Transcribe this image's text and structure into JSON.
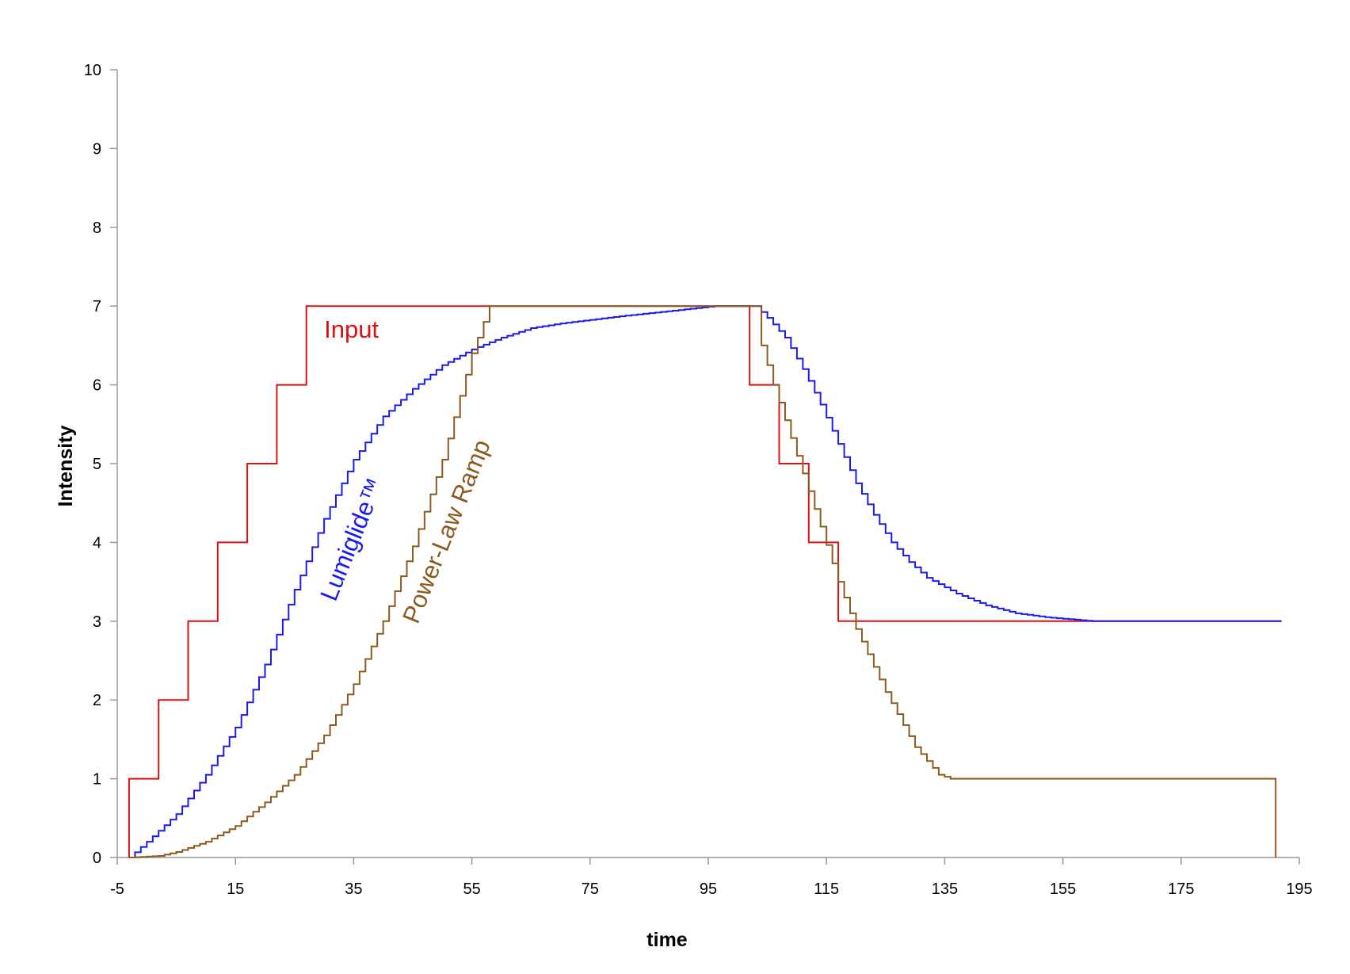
{
  "chart_data": {
    "type": "line",
    "title": "",
    "xlabel": "time",
    "ylabel": "Intensity",
    "xlim": [
      -5,
      195
    ],
    "ylim": [
      0,
      10
    ],
    "x_ticks": [
      -5,
      15,
      35,
      55,
      75,
      95,
      115,
      135,
      155,
      175,
      195
    ],
    "y_ticks": [
      0,
      1,
      2,
      3,
      4,
      5,
      6,
      7,
      8,
      9,
      10
    ],
    "grid": false,
    "legend": "inline labels",
    "step_size": 1,
    "series": [
      {
        "name": "Input",
        "color": "#dd1111",
        "style": "step",
        "points": [
          [
            -3,
            0
          ],
          [
            -3,
            1
          ],
          [
            2,
            1
          ],
          [
            2,
            2
          ],
          [
            7,
            2
          ],
          [
            7,
            3
          ],
          [
            12,
            3
          ],
          [
            12,
            4
          ],
          [
            17,
            4
          ],
          [
            17,
            5
          ],
          [
            22,
            5
          ],
          [
            22,
            6
          ],
          [
            27,
            6
          ],
          [
            27,
            7
          ],
          [
            102,
            7
          ],
          [
            102,
            6
          ],
          [
            107,
            6
          ],
          [
            107,
            5
          ],
          [
            112,
            5
          ],
          [
            112,
            4
          ],
          [
            117,
            4
          ],
          [
            117,
            3
          ],
          [
            192,
            3
          ]
        ]
      },
      {
        "name": "Lumiglide™",
        "color": "#1a1aee",
        "style": "fine-step",
        "points": [
          [
            -3,
            0
          ],
          [
            0,
            0.2
          ],
          [
            5,
            0.55
          ],
          [
            10,
            1.05
          ],
          [
            15,
            1.65
          ],
          [
            20,
            2.45
          ],
          [
            25,
            3.4
          ],
          [
            30,
            4.3
          ],
          [
            35,
            5.05
          ],
          [
            40,
            5.6
          ],
          [
            45,
            5.95
          ],
          [
            50,
            6.25
          ],
          [
            55,
            6.45
          ],
          [
            60,
            6.6
          ],
          [
            65,
            6.72
          ],
          [
            70,
            6.78
          ],
          [
            80,
            6.87
          ],
          [
            90,
            6.95
          ],
          [
            96,
            7.0
          ],
          [
            103,
            7.0
          ],
          [
            105,
            6.85
          ],
          [
            108,
            6.6
          ],
          [
            111,
            6.2
          ],
          [
            114,
            5.75
          ],
          [
            117,
            5.25
          ],
          [
            120,
            4.75
          ],
          [
            123,
            4.35
          ],
          [
            126,
            4.0
          ],
          [
            129,
            3.75
          ],
          [
            132,
            3.55
          ],
          [
            137,
            3.35
          ],
          [
            142,
            3.2
          ],
          [
            147,
            3.1
          ],
          [
            152,
            3.05
          ],
          [
            160,
            3.0
          ],
          [
            192,
            3.0
          ]
        ]
      },
      {
        "name": "Power-Law Ramp",
        "color": "#8b5a1e",
        "style": "fine-step",
        "points": [
          [
            -3,
            0
          ],
          [
            2,
            0.02
          ],
          [
            5,
            0.07
          ],
          [
            10,
            0.2
          ],
          [
            15,
            0.4
          ],
          [
            20,
            0.7
          ],
          [
            25,
            1.05
          ],
          [
            30,
            1.55
          ],
          [
            35,
            2.2
          ],
          [
            40,
            3.0
          ],
          [
            45,
            3.95
          ],
          [
            50,
            5.05
          ],
          [
            55,
            6.4
          ],
          [
            58,
            7.0
          ],
          [
            103,
            7.0
          ],
          [
            104,
            6.5
          ],
          [
            106,
            6.0
          ],
          [
            110,
            5.1
          ],
          [
            114,
            4.2
          ],
          [
            117,
            3.5
          ],
          [
            120,
            2.9
          ],
          [
            125,
            2.1
          ],
          [
            130,
            1.4
          ],
          [
            134,
            1.05
          ],
          [
            136,
            1.0
          ],
          [
            191,
            1.0
          ],
          [
            191,
            0
          ]
        ]
      }
    ],
    "annotations": [
      {
        "text": "Input",
        "color": "#dd1111",
        "x": 30,
        "y": 6.6,
        "rotation": 0
      },
      {
        "text": "Lumiglide™",
        "color": "#1a1aee",
        "x": 36,
        "y": 4.0,
        "rotation": -68
      },
      {
        "text": "Power-Law Ramp",
        "color": "#8b5a1e",
        "x": 52,
        "y": 4.1,
        "rotation": -68
      }
    ]
  }
}
